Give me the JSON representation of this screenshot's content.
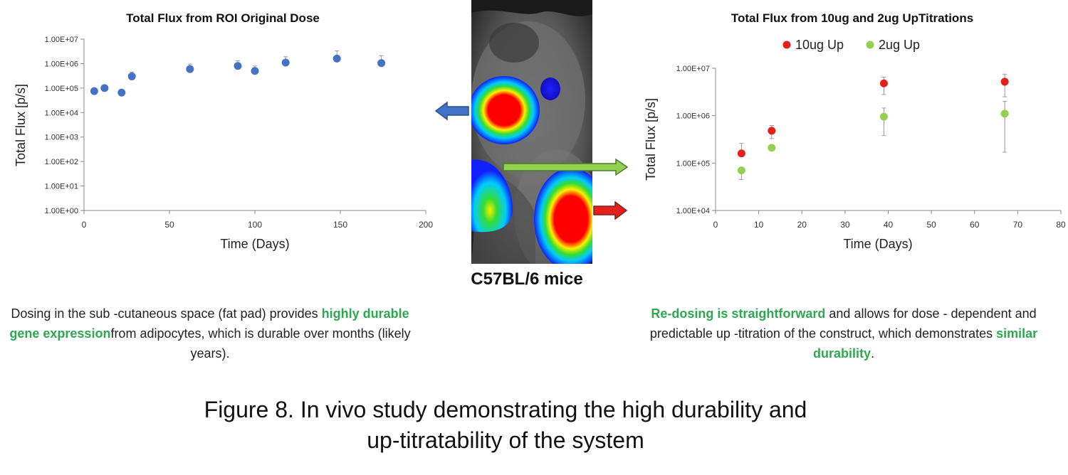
{
  "chart_data": [
    {
      "type": "scatter",
      "title": "Total Flux from ROI Original Dose",
      "xlabel": "Time (Days)",
      "ylabel": "Total Flux [p/s]",
      "xlim": [
        0,
        200
      ],
      "ylim": [
        1,
        10000000
      ],
      "yscale": "log",
      "xticks": [
        "0",
        "50",
        "100",
        "150",
        "200"
      ],
      "yticks": [
        "1.00E+00",
        "1.00E+01",
        "1.00E+02",
        "1.00E+03",
        "1.00E+04",
        "1.00E+05",
        "1.00E+06",
        "1.00E+07"
      ],
      "grid": false,
      "series": [
        {
          "color": "#4472c4",
          "x": [
            6,
            12,
            22,
            28,
            62,
            90,
            100,
            118,
            148,
            174
          ],
          "y": [
            75000,
            100000,
            65000,
            300000,
            600000,
            800000,
            500000,
            1100000,
            1600000,
            1050000
          ],
          "err_upper": [
            90000,
            120000,
            75000,
            450000,
            950000,
            1300000,
            800000,
            1900000,
            3300000,
            2100000
          ]
        }
      ]
    },
    {
      "type": "scatter",
      "title": "Total Flux from 10ug and 2ug UpTitrations",
      "xlabel": "Time (Days)",
      "ylabel": "Total Flux [p/s]",
      "xlim": [
        0,
        80
      ],
      "ylim": [
        10000,
        10000000
      ],
      "yscale": "log",
      "xticks": [
        "0",
        "10",
        "20",
        "30",
        "40",
        "50",
        "60",
        "70",
        "80"
      ],
      "yticks": [
        "1.00E+04",
        "1.00E+05",
        "1.00E+06",
        "1.00E+07"
      ],
      "grid": false,
      "legend": "top",
      "series": [
        {
          "name": "10ug Up",
          "color": "#e3201b",
          "x": [
            6,
            13,
            39,
            67
          ],
          "y": [
            160000,
            480000,
            4800000,
            5200000
          ],
          "err_upper": [
            260000,
            620000,
            6500000,
            7500000
          ],
          "err_lower": [
            160000,
            330000,
            2800000,
            2500000
          ]
        },
        {
          "name": "2ug Up",
          "color": "#92d050",
          "x": [
            6,
            13,
            39,
            67
          ],
          "y": [
            70000,
            210000,
            950000,
            1100000
          ],
          "err_upper": [
            70000,
            210000,
            1450000,
            2000000
          ],
          "err_lower": [
            45000,
            210000,
            380000,
            170000
          ]
        }
      ]
    }
  ],
  "mouse_label": "C57BL/6 mice",
  "left_caption": {
    "pre": "Dosing in the sub -cutaneous space (fat pad) provides ",
    "highlight": "highly durable gene expression",
    "post": "from adipocytes, which is durable over months (likely years)."
  },
  "right_caption": {
    "highlight1": "Re-dosing is straightforward",
    "mid": " and allows for dose - dependent and predictable up -titration of the construct, which demonstrates ",
    "highlight2": "similar durability",
    "end": "."
  },
  "figure_caption": {
    "line1": "Figure 8. In vivo study demonstrating the high durability and",
    "line2": "up-titratability of the system"
  },
  "colors": {
    "arrow_left": "#4472c4",
    "arrow_green": "#92d050",
    "arrow_red": "#e3201b",
    "highlight": "#2ea84f"
  }
}
